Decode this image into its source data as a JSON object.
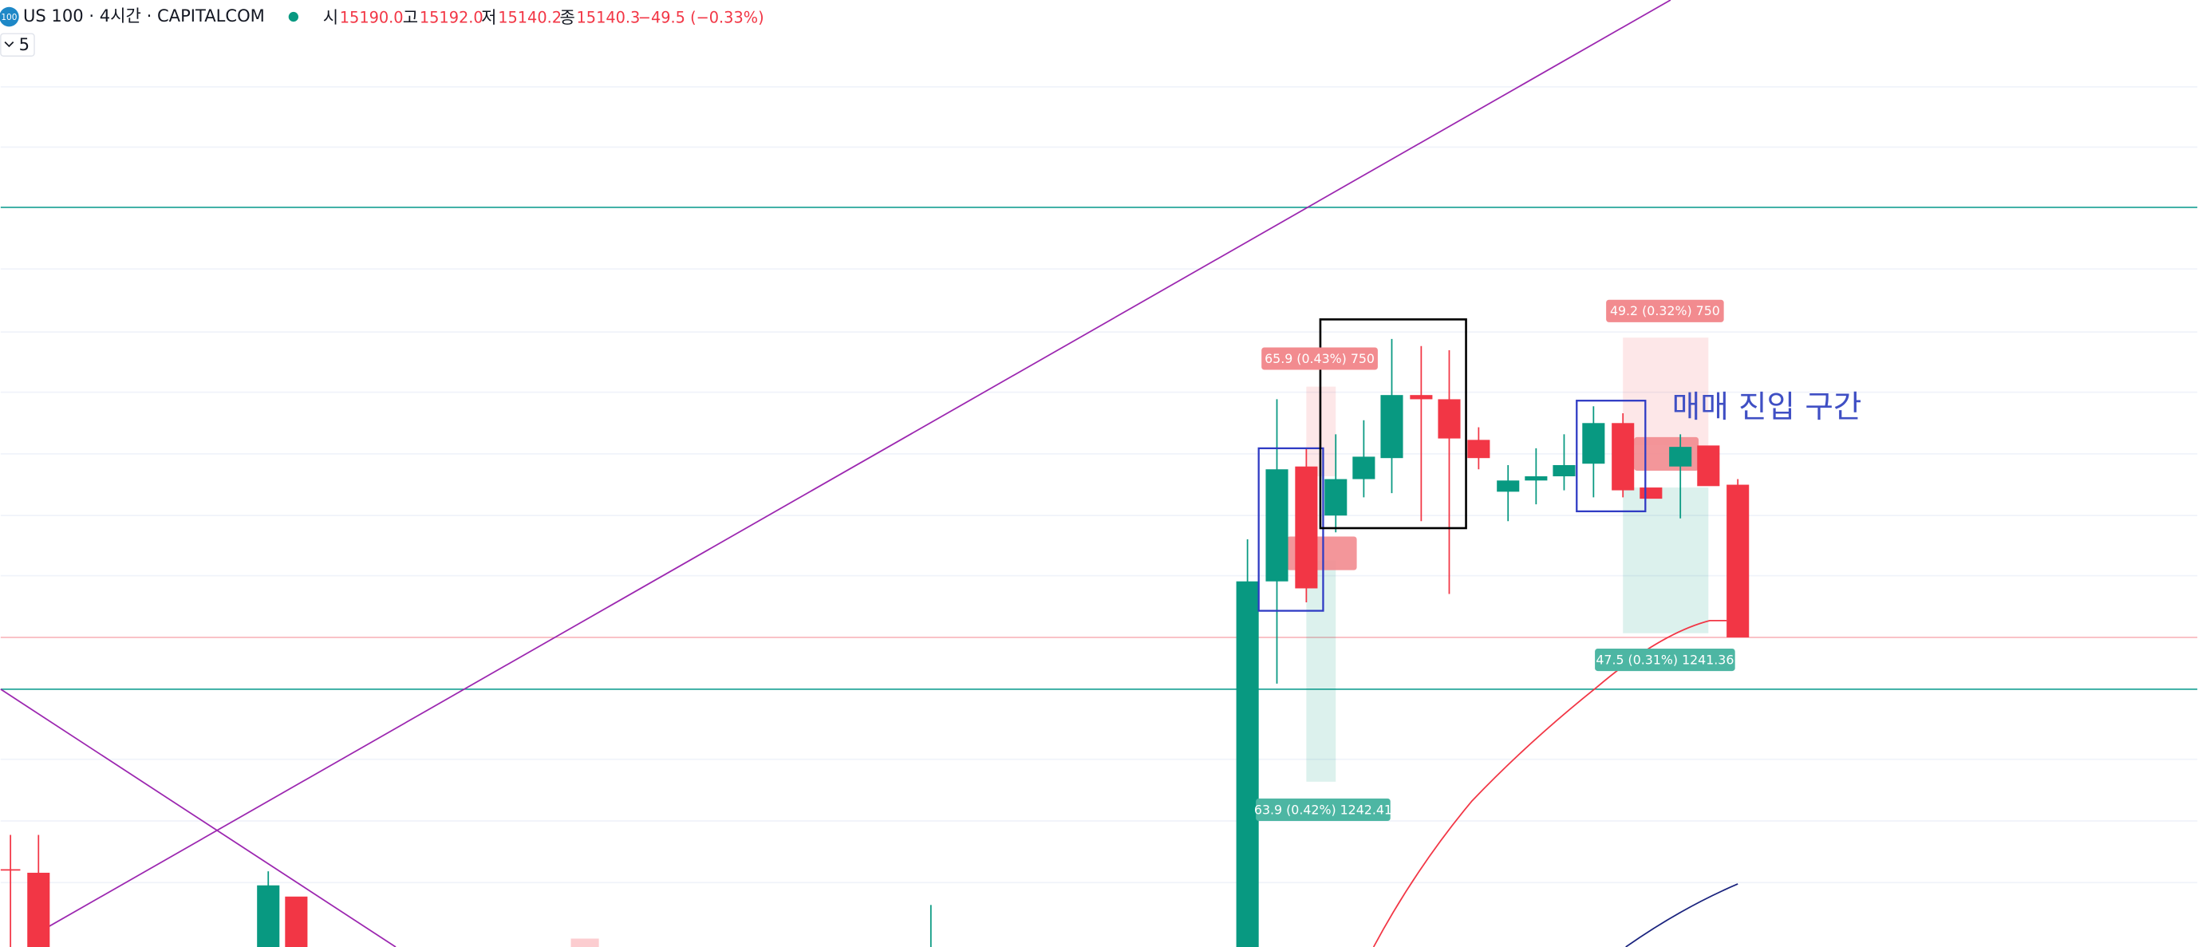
{
  "header": {
    "symbol": "US 100 · 4시간 · CAPITALCOM",
    "logo": "100",
    "open_label": "시",
    "open": "15190.0",
    "high_label": "고",
    "high": "15192.0",
    "low_label": "저",
    "low": "15140.2",
    "close_label": "종",
    "close": "15140.3",
    "change": "−49.5 (−0.33%)"
  },
  "interval": "5",
  "position_labels": [
    "65.9 (0.43%) 750",
    "63.9 (0.42%) 1242.41",
    "49.2 (0.32%) 750",
    "47.5 (0.31%) 1241.36"
  ],
  "zone_text": "매매 진입 구간"
}
